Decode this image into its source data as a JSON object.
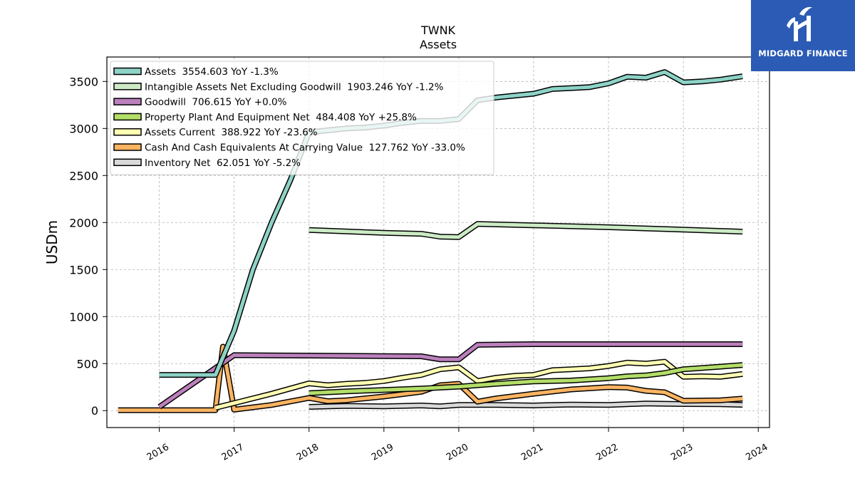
{
  "chart_data": {
    "type": "line",
    "title": "TWNK",
    "subtitle": "Assets",
    "ylabel": "USDm",
    "xlabel": "",
    "xlim": [
      2015.3,
      2024.15
    ],
    "ylim": [
      -180,
      3760
    ],
    "xticks": [
      2016,
      2017,
      2018,
      2019,
      2020,
      2021,
      2022,
      2023,
      2024
    ],
    "yticks": [
      0,
      500,
      1000,
      1500,
      2000,
      2500,
      3000,
      3500
    ],
    "grid": true,
    "legend_position": "top-left",
    "series": [
      {
        "name": "Assets  3554.603 YoY -1.3%",
        "color": "#8dd3c7",
        "x": [
          2016.0,
          2016.75,
          2017.0,
          2017.25,
          2017.5,
          2017.75,
          2018.0,
          2018.25,
          2018.5,
          2018.75,
          2019.0,
          2019.25,
          2019.5,
          2019.75,
          2020.0,
          2020.25,
          2020.5,
          2020.75,
          2021.0,
          2021.25,
          2021.5,
          2021.75,
          2022.0,
          2022.25,
          2022.5,
          2022.75,
          2023.0,
          2023.25,
          2023.5,
          2023.79
        ],
        "y": [
          380,
          380,
          850,
          1500,
          2000,
          2450,
          2960,
          2980,
          3000,
          3010,
          3030,
          3060,
          3080,
          3080,
          3100,
          3300,
          3330,
          3350,
          3370,
          3420,
          3430,
          3440,
          3480,
          3550,
          3540,
          3600,
          3490,
          3500,
          3520,
          3554.603
        ]
      },
      {
        "name": "Intangible Assets Net Excluding Goodwill  1903.246 YoY -1.2%",
        "color": "#ccebc5",
        "x": [
          2018.0,
          2019.0,
          2019.5,
          2019.75,
          2020.0,
          2020.25,
          2021.0,
          2022.0,
          2023.0,
          2023.79
        ],
        "y": [
          1920,
          1890,
          1880,
          1850,
          1845,
          1985,
          1970,
          1950,
          1925,
          1903.246
        ]
      },
      {
        "name": "Goodwill  706.615 YoY +0.0%",
        "color": "#bc80bd",
        "x": [
          2016.0,
          2017.0,
          2018.0,
          2019.0,
          2019.5,
          2019.75,
          2020.0,
          2020.25,
          2020.75,
          2021.0,
          2022.0,
          2023.0,
          2023.79
        ],
        "y": [
          40,
          590,
          585,
          580,
          578,
          545,
          545,
          700,
          705,
          706.615,
          706.615,
          706.615,
          706.615
        ]
      },
      {
        "name": "Property Plant And Equipment Net  484.408 YoY +25.8%",
        "color": "#b3de69",
        "x": [
          2018.0,
          2018.5,
          2019.0,
          2019.5,
          2020.0,
          2020.5,
          2021.0,
          2021.5,
          2022.0,
          2022.25,
          2022.5,
          2022.75,
          2023.0,
          2023.79
        ],
        "y": [
          185,
          205,
          220,
          235,
          255,
          285,
          310,
          320,
          345,
          365,
          375,
          400,
          440,
          484.408
        ]
      },
      {
        "name": "Assets Current  388.922 YoY -23.6%",
        "color": "#ffffb3",
        "x": [
          2016.75,
          2017.0,
          2017.5,
          2018.0,
          2018.25,
          2018.5,
          2018.75,
          2019.0,
          2019.25,
          2019.5,
          2019.75,
          2020.0,
          2020.25,
          2020.5,
          2020.75,
          2021.0,
          2021.25,
          2021.5,
          2021.75,
          2022.0,
          2022.25,
          2022.5,
          2022.75,
          2023.0,
          2023.25,
          2023.5,
          2023.79
        ],
        "y": [
          30,
          80,
          180,
          290,
          270,
          285,
          295,
          315,
          350,
          380,
          440,
          460,
          315,
          350,
          370,
          380,
          430,
          440,
          450,
          475,
          510,
          500,
          520,
          360,
          365,
          360,
          388.922
        ]
      },
      {
        "name": "Cash And Cash Equivalents At Carrying Value  127.762 YoY -33.0%",
        "color": "#fdb462",
        "x": [
          2015.45,
          2016.75,
          2016.85,
          2017.0,
          2017.5,
          2018.0,
          2018.25,
          2018.5,
          2019.0,
          2019.5,
          2019.75,
          2020.0,
          2020.25,
          2020.5,
          2021.0,
          2021.5,
          2022.0,
          2022.25,
          2022.5,
          2022.75,
          2023.0,
          2023.5,
          2023.79
        ],
        "y": [
          5,
          5,
          680,
          10,
          60,
          135,
          100,
          110,
          150,
          200,
          270,
          285,
          95,
          130,
          180,
          225,
          250,
          245,
          210,
          195,
          105,
          110,
          127.762
        ]
      },
      {
        "name": "Inventory Net  62.051 YoY -5.2%",
        "color": "#d9d9d9",
        "x": [
          2018.0,
          2018.5,
          2019.0,
          2019.5,
          2019.75,
          2020.0,
          2020.5,
          2021.0,
          2021.5,
          2022.0,
          2022.5,
          2023.0,
          2023.5,
          2023.79
        ],
        "y": [
          40,
          50,
          45,
          55,
          45,
          60,
          60,
          55,
          65,
          60,
          75,
          70,
          68,
          62.051
        ]
      }
    ]
  },
  "watermark": {
    "text": "MIDGARD FINANCE",
    "background": "#2b5bb5"
  }
}
